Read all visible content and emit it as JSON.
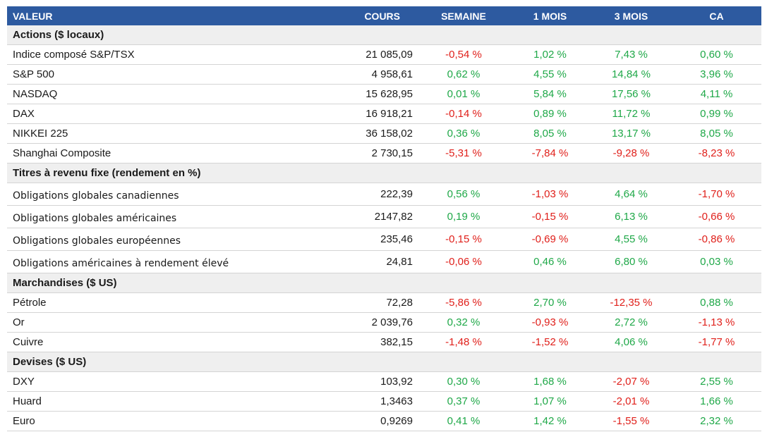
{
  "headers": {
    "valeur": "VALEUR",
    "cours": "COURS",
    "semaine": "SEMAINE",
    "mois1": "1 MOIS",
    "mois3": "3 MOIS",
    "ca": "CA"
  },
  "colors": {
    "header_bg": "#2d5aa0",
    "section_bg": "#efefef",
    "positive": "#1fa848",
    "negative": "#e0201b"
  },
  "sections": [
    {
      "title": "Actions ($ locaux)",
      "rows": [
        {
          "name": "Indice composé S&P/TSX",
          "cours": "21 085,09",
          "semaine": "-0,54 %",
          "mois1": "1,02 %",
          "mois3": "7,43 %",
          "ca": "0,60 %"
        },
        {
          "name": "S&P 500",
          "cours": "4 958,61",
          "semaine": "0,62 %",
          "mois1": "4,55 %",
          "mois3": "14,84 %",
          "ca": "3,96 %"
        },
        {
          "name": "NASDAQ",
          "cours": "15 628,95",
          "semaine": "0,01 %",
          "mois1": "5,84 %",
          "mois3": "17,56 %",
          "ca": "4,11 %"
        },
        {
          "name": "DAX",
          "cours": "16 918,21",
          "semaine": "-0,14 %",
          "mois1": "0,89 %",
          "mois3": "11,72 %",
          "ca": "0,99 %"
        },
        {
          "name": "NIKKEI 225",
          "cours": "36 158,02",
          "semaine": "0,36 %",
          "mois1": "8,05 %",
          "mois3": "13,17 %",
          "ca": "8,05 %"
        },
        {
          "name": "Shanghai Composite",
          "cours": "2 730,15",
          "semaine": "-5,31 %",
          "mois1": "-7,84 %",
          "mois3": "-9,28 %",
          "ca": "-8,23 %"
        }
      ]
    },
    {
      "title": "Titres à revenu fixe (rendement en %)",
      "rows": [
        {
          "name": "Obligations globales canadiennes",
          "cours": "222,39",
          "semaine": "0,56 %",
          "mois1": "-1,03 %",
          "mois3": "4,64 %",
          "ca": "-1,70 %"
        },
        {
          "name": "Obligations globales américaines",
          "cours": "2147,82",
          "semaine": "0,19 %",
          "mois1": "-0,15 %",
          "mois3": "6,13 %",
          "ca": "-0,66 %"
        },
        {
          "name": "Obligations globales européennes",
          "cours": "235,46",
          "semaine": "-0,15 %",
          "mois1": "-0,69 %",
          "mois3": "4,55 %",
          "ca": "-0,86 %"
        },
        {
          "name": "Obligations américaines à rendement élevé",
          "cours": "24,81",
          "semaine": "-0,06 %",
          "mois1": "0,46 %",
          "mois3": "6,80 %",
          "ca": "0,03 %"
        }
      ]
    },
    {
      "title": "Marchandises ($ US)",
      "rows": [
        {
          "name": "Pétrole",
          "cours": "72,28",
          "semaine": "-5,86 %",
          "mois1": "2,70 %",
          "mois3": "-12,35 %",
          "ca": "0,88 %"
        },
        {
          "name": "Or",
          "cours": "2 039,76",
          "semaine": "0,32 %",
          "mois1": "-0,93 %",
          "mois3": "2,72 %",
          "ca": "-1,13 %"
        },
        {
          "name": "Cuivre",
          "cours": "382,15",
          "semaine": "-1,48 %",
          "mois1": "-1,52 %",
          "mois3": "4,06 %",
          "ca": "-1,77 %"
        }
      ]
    },
    {
      "title": "Devises ($ US)",
      "rows": [
        {
          "name": "DXY",
          "cours": "103,92",
          "semaine": "0,30 %",
          "mois1": "1,68 %",
          "mois3": "-2,07 %",
          "ca": "2,55 %"
        },
        {
          "name": "Huard",
          "cours": "1,3463",
          "semaine": "0,37 %",
          "mois1": "1,07 %",
          "mois3": "-2,01 %",
          "ca": "1,66 %"
        },
        {
          "name": "Euro",
          "cours": "0,9269",
          "semaine": "0,41 %",
          "mois1": "1,42 %",
          "mois3": "-1,55 %",
          "ca": "2,32 %"
        }
      ]
    }
  ]
}
